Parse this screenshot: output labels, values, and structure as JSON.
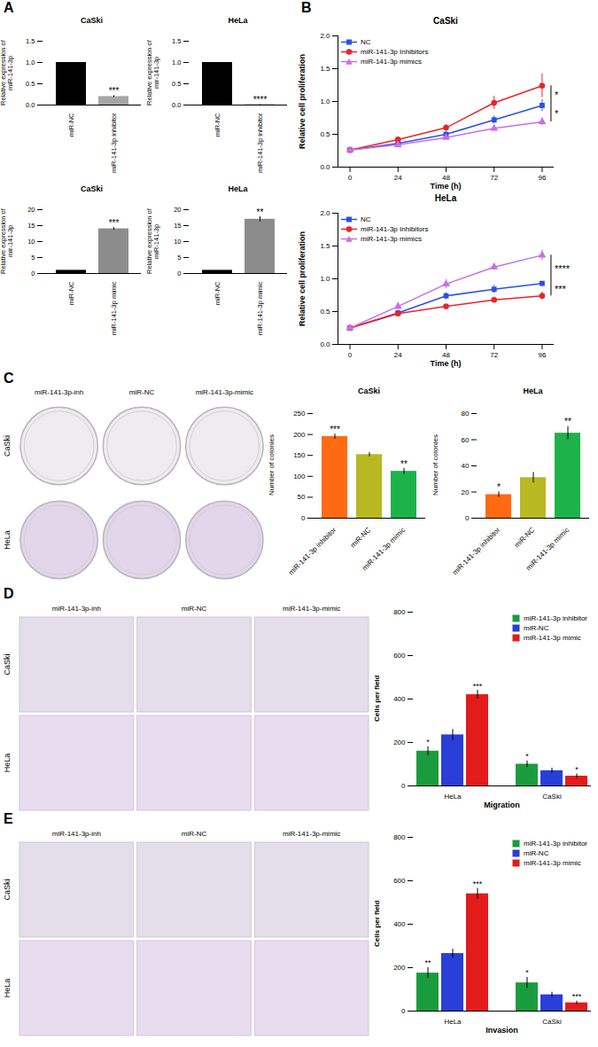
{
  "chart_data": [
    {
      "panel": "A",
      "type": "bar",
      "title": "CaSki",
      "ylabel": "Relative expression of miR-141-3p",
      "categories": [
        "miR-NC",
        "miR-141-3p inhibitor"
      ],
      "values": [
        1,
        0.2
      ],
      "errors": [
        0,
        0.02
      ],
      "significance": [
        null,
        "***"
      ],
      "colors": [
        "#000000",
        "#a6a6a6"
      ],
      "ylim": [
        0,
        1.5
      ],
      "yticks": [
        {
          "value": 0,
          "label": "0.0"
        },
        {
          "value": 0.5,
          "label": "0.5"
        },
        {
          "value": 1,
          "label": "1.0"
        },
        {
          "value": 1.5,
          "label": "1.5"
        }
      ]
    },
    {
      "panel": "A",
      "type": "bar",
      "title": "HeLa",
      "ylabel": "Relative expression of mir-141-3p",
      "categories": [
        "miR-NC",
        "miR-141-3p inhibitor"
      ],
      "values": [
        1,
        0.01
      ],
      "errors": [
        0,
        0.005
      ],
      "significance": [
        null,
        "****"
      ],
      "colors": [
        "#000000",
        "#a6a6a6"
      ],
      "ylim": [
        0,
        1.5
      ],
      "yticks": [
        {
          "value": 0,
          "label": "0.0"
        },
        {
          "value": 0.5,
          "label": "0.5"
        },
        {
          "value": 1,
          "label": "1.0"
        },
        {
          "value": 1.5,
          "label": "1.5"
        }
      ]
    },
    {
      "panel": "A",
      "type": "bar",
      "title": "CaSki",
      "ylabel": "Relative expression of mir-141-3p",
      "categories": [
        "miR-NC",
        "miR-141-3p mimic"
      ],
      "values": [
        1,
        14
      ],
      "errors": [
        0,
        0.4
      ],
      "significance": [
        null,
        "***"
      ],
      "colors": [
        "#000000",
        "#8c8c8c"
      ],
      "ylim": [
        0,
        20
      ],
      "yticks": [
        0,
        5,
        10,
        15,
        20
      ]
    },
    {
      "panel": "A",
      "type": "bar",
      "title": "HeLa",
      "ylabel": "Relative expression of miR-141-3p",
      "categories": [
        "miR-NC",
        "miR-141-3p mimic"
      ],
      "values": [
        1,
        17
      ],
      "errors": [
        0,
        0.8
      ],
      "significance": [
        null,
        "**"
      ],
      "colors": [
        "#000000",
        "#8c8c8c"
      ],
      "ylim": [
        0,
        20
      ],
      "yticks": [
        0,
        5,
        10,
        15,
        20
      ]
    },
    {
      "panel": "B",
      "type": "line",
      "title": "CaSki",
      "xlabel": "Time (h)",
      "ylabel": "Relative cell proliferation",
      "x": [
        0,
        24,
        48,
        72,
        96
      ],
      "xlim": [
        -6,
        102
      ],
      "xticks": [
        0,
        24,
        48,
        72,
        96
      ],
      "ylim": [
        0,
        2
      ],
      "yticks": [
        {
          "value": 0,
          "label": "0.0"
        },
        {
          "value": 0.5,
          "label": "0.5"
        },
        {
          "value": 1,
          "label": "1.0"
        },
        {
          "value": 1.5,
          "label": "1.5"
        },
        {
          "value": 2,
          "label": "2.0"
        }
      ],
      "legend": "upper left",
      "series": [
        {
          "name": "NC",
          "color": "#2b50e8",
          "marker": "square",
          "values": [
            0.26,
            0.36,
            0.5,
            0.72,
            0.94
          ],
          "errors": [
            0.01,
            0.03,
            0.04,
            0.06,
            0.09
          ]
        },
        {
          "name": "miR-141-3p Inhibitors",
          "color": "#e8242a",
          "marker": "circle",
          "values": [
            0.26,
            0.42,
            0.6,
            0.98,
            1.24
          ],
          "errors": [
            0.01,
            0.02,
            0.05,
            0.1,
            0.18
          ]
        },
        {
          "name": "miR-141-3p mimics",
          "color": "#c86fe5",
          "marker": "triangle",
          "values": [
            0.26,
            0.34,
            0.45,
            0.59,
            0.69
          ],
          "errors": [
            0.01,
            0.03,
            0.03,
            0.04,
            0.06
          ]
        }
      ],
      "significance": [
        {
          "between": [
            "miR-141-3p Inhibitors",
            "NC"
          ],
          "label": "*"
        },
        {
          "between": [
            "NC",
            "miR-141-3p mimics"
          ],
          "label": "*"
        }
      ]
    },
    {
      "panel": "B",
      "type": "line",
      "title": "HeLa",
      "xlabel": "Time (h)",
      "ylabel": "Relative cell proliferation",
      "x": [
        0,
        24,
        48,
        72,
        96
      ],
      "xlim": [
        -6,
        102
      ],
      "xticks": [
        0,
        24,
        48,
        72,
        96
      ],
      "ylim": [
        0,
        2
      ],
      "yticks": [
        {
          "value": 0,
          "label": "0.0"
        },
        {
          "value": 0.5,
          "label": "0.5"
        },
        {
          "value": 1,
          "label": "1.0"
        },
        {
          "value": 1.5,
          "label": "1.5"
        },
        {
          "value": 2,
          "label": "2.0"
        }
      ],
      "legend": "upper left",
      "series": [
        {
          "name": "NC",
          "color": "#2b50e8",
          "marker": "square",
          "values": [
            0.25,
            0.48,
            0.74,
            0.84,
            0.93
          ],
          "errors": [
            0.01,
            0.02,
            0.05,
            0.06,
            0.03
          ]
        },
        {
          "name": "miR-141-3p Inhibitors",
          "color": "#e8242a",
          "marker": "circle",
          "values": [
            0.25,
            0.47,
            0.58,
            0.68,
            0.74
          ],
          "errors": [
            0.01,
            0.02,
            0.02,
            0.04,
            0.06
          ]
        },
        {
          "name": "miR-141-3p mimics",
          "color": "#c86fe5",
          "marker": "triangle",
          "values": [
            0.25,
            0.58,
            0.92,
            1.18,
            1.36
          ],
          "errors": [
            0.01,
            0.06,
            0.07,
            0.05,
            0.08
          ]
        }
      ],
      "significance": [
        {
          "between": [
            "miR-141-3p mimics",
            "NC"
          ],
          "label": "****"
        },
        {
          "between": [
            "NC",
            "miR-141-3p Inhibitors"
          ],
          "label": "***"
        }
      ]
    },
    {
      "panel": "C",
      "type": "bar",
      "title": "CaSki",
      "ylabel": "Number of colonies",
      "categories": [
        "miR-141-3p inhibitor",
        "miR-NC",
        "miR-141-3p mimic"
      ],
      "values": [
        195,
        152,
        112
      ],
      "errors": [
        6,
        5,
        7
      ],
      "significance": [
        "***",
        null,
        "**"
      ],
      "colors": [
        "#ff6a13",
        "#b8b822",
        "#1db24a"
      ],
      "ylim": [
        0,
        250
      ],
      "yticks": [
        0,
        50,
        100,
        150,
        200,
        250
      ]
    },
    {
      "panel": "C",
      "type": "bar",
      "title": "HeLa",
      "ylabel": "Number of colonies",
      "categories": [
        "miR-141-3p inhibitor",
        "miR-NC",
        "miR-141-3p mimic"
      ],
      "values": [
        18,
        31,
        65
      ],
      "errors": [
        2,
        4,
        5
      ],
      "significance": [
        "*",
        null,
        "**"
      ],
      "colors": [
        "#ff6a13",
        "#b8b822",
        "#1db24a"
      ],
      "ylim": [
        0,
        80
      ],
      "yticks": [
        0,
        20,
        40,
        60,
        80
      ]
    },
    {
      "panel": "D",
      "type": "bar",
      "xlabel": "Migration",
      "ylabel": "Cells per field",
      "categories": [
        "HeLa",
        "CaSki"
      ],
      "ylim": [
        0,
        800
      ],
      "yticks": [
        0,
        200,
        400,
        600,
        800
      ],
      "legend": "upper right",
      "series": [
        {
          "name": "miR-141-3p inhibitor",
          "color": "#1a9c3e",
          "values": [
            160,
            100
          ],
          "errors": [
            20,
            15
          ],
          "significance": [
            "*",
            "*"
          ]
        },
        {
          "name": "miR-NC",
          "color": "#2a3ed8",
          "values": [
            235,
            70
          ],
          "errors": [
            25,
            12
          ],
          "significance": [
            null,
            null
          ]
        },
        {
          "name": "miR-141-3p mimic",
          "color": "#e31b1b",
          "values": [
            420,
            45
          ],
          "errors": [
            20,
            10
          ],
          "significance": [
            "***",
            "*"
          ]
        }
      ]
    },
    {
      "panel": "E",
      "type": "bar",
      "xlabel": "Invasion",
      "ylabel": "Cells per field",
      "categories": [
        "HeLa",
        "CaSki"
      ],
      "ylim": [
        0,
        800
      ],
      "yticks": [
        0,
        200,
        400,
        600,
        800
      ],
      "legend": "upper right",
      "series": [
        {
          "name": "miR-141-3p inhibitor",
          "color": "#1a9c3e",
          "values": [
            175,
            130
          ],
          "errors": [
            25,
            25
          ],
          "significance": [
            "**",
            "*"
          ]
        },
        {
          "name": "miR-NC",
          "color": "#2a3ed8",
          "values": [
            265,
            75
          ],
          "errors": [
            20,
            12
          ],
          "significance": [
            null,
            null
          ]
        },
        {
          "name": "miR-141-3p mimic",
          "color": "#e31b1b",
          "values": [
            540,
            38
          ],
          "errors": [
            25,
            8
          ],
          "significance": [
            "***",
            "***"
          ]
        }
      ]
    }
  ],
  "images": [
    {
      "panel": "C",
      "columns": [
        "miR-141-3p-inh",
        "miR-NC",
        "miR-141-3p-mimic"
      ],
      "rows": [
        "CaSki",
        "HeLa"
      ]
    },
    {
      "panel": "D",
      "columns": [
        "miR-141-3p-inh",
        "miR-NC",
        "miR-141-3p-mimic"
      ],
      "rows": [
        "CaSki",
        "HeLa"
      ]
    },
    {
      "panel": "E",
      "columns": [
        "miR-141-3p-inh",
        "miR-NC",
        "miR-141-3p-mimic"
      ],
      "rows": [
        "CaSki",
        "HeLa"
      ]
    }
  ]
}
